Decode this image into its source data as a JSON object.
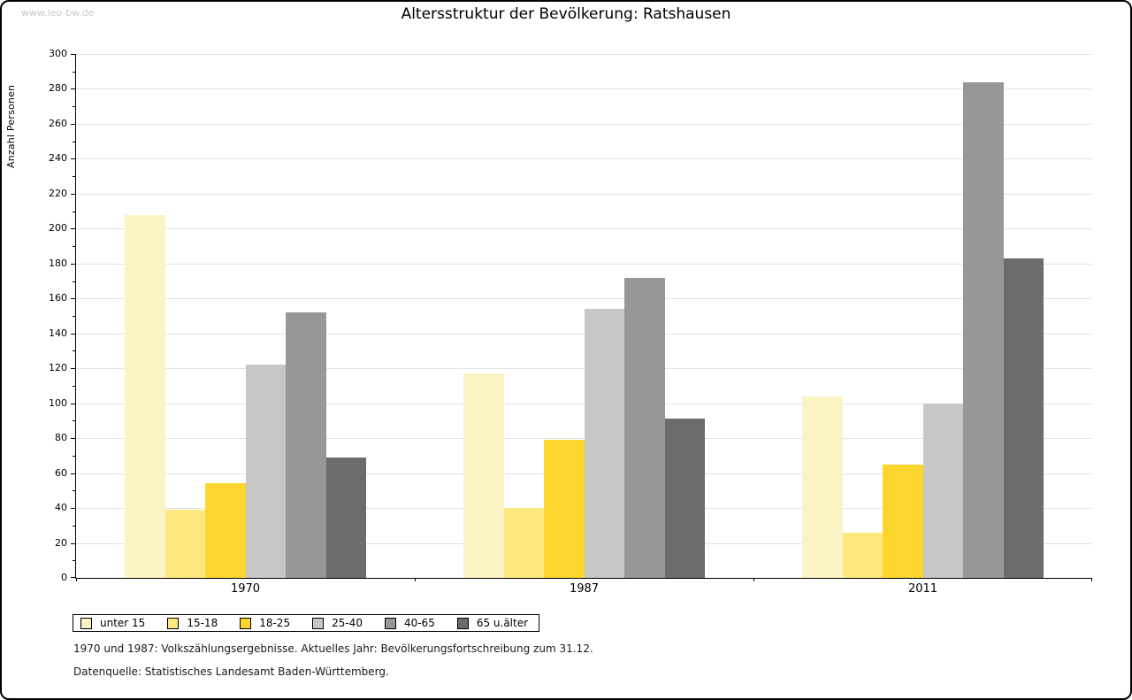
{
  "watermark": "www.leo-bw.de",
  "title": "Altersstruktur der Bevölkerung: Ratshausen",
  "chart_data": {
    "type": "bar",
    "grouped": true,
    "title": "Altersstruktur der Bevölkerung: Ratshausen",
    "xlabel": "",
    "ylabel": "Anzahl Personen",
    "ylim": [
      0,
      300
    ],
    "ytick_step": 20,
    "yminor_step": 10,
    "grid": true,
    "legend_position": "bottom",
    "categories": [
      "1970",
      "1987",
      "2011"
    ],
    "series": [
      {
        "name": "unter 15",
        "color": "#FCF3C5",
        "values": [
          208,
          117,
          104
        ]
      },
      {
        "name": "15-18",
        "color": "#FDE880",
        "values": [
          39,
          40,
          26
        ]
      },
      {
        "name": "18-25",
        "color": "#FDD62D",
        "values": [
          54,
          79,
          65
        ]
      },
      {
        "name": "25-40",
        "color": "#C7C7C7",
        "values": [
          122,
          154,
          100
        ]
      },
      {
        "name": "40-65",
        "color": "#979797",
        "values": [
          152,
          172,
          284
        ]
      },
      {
        "name": "65 u.älter",
        "color": "#6C6C6C",
        "values": [
          69,
          91,
          183
        ]
      }
    ],
    "colors": {
      "axis": "#000000",
      "gridline": "#e2e2e2",
      "watermark": "#c9c9c9"
    }
  },
  "footnotes": [
    "1970 und 1987: Volkszählungsergebnisse. Aktuelles Jahr: Bevölkerungsfortschreibung zum 31.12.",
    "Datenquelle: Statistisches Landesamt Baden-Württemberg."
  ]
}
